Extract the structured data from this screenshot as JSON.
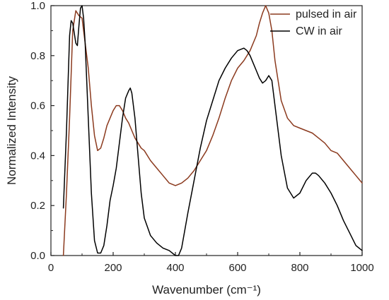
{
  "chart_data": {
    "type": "line",
    "title": "",
    "xlabel": "Wavenumber (cm⁻¹)",
    "ylabel": "Normalized Intensity",
    "xlim": [
      0,
      1000
    ],
    "ylim": [
      0,
      1.0
    ],
    "xticks": [
      0,
      200,
      400,
      600,
      800,
      1000
    ],
    "yticks": [
      0.0,
      0.2,
      0.4,
      0.6,
      0.8,
      1.0
    ],
    "xtick_labels": [
      "0",
      "200",
      "400",
      "600",
      "800",
      "1000"
    ],
    "ytick_labels": [
      "0.0",
      "0.2",
      "0.4",
      "0.6",
      "0.8",
      "1.0"
    ],
    "grid": false,
    "legend_position": "top-right",
    "series": [
      {
        "name": "pulsed in air",
        "color": "#8B3A1E",
        "x": [
          40,
          50,
          60,
          70,
          80,
          90,
          100,
          110,
          120,
          130,
          140,
          150,
          160,
          170,
          180,
          190,
          200,
          210,
          220,
          230,
          240,
          250,
          260,
          270,
          280,
          290,
          300,
          320,
          340,
          360,
          380,
          400,
          420,
          440,
          460,
          480,
          500,
          520,
          540,
          560,
          580,
          600,
          620,
          640,
          660,
          670,
          680,
          690,
          700,
          710,
          720,
          740,
          760,
          780,
          800,
          820,
          840,
          860,
          880,
          900,
          920,
          940,
          960,
          980,
          1000
        ],
        "values": [
          0.0,
          0.25,
          0.55,
          0.9,
          0.98,
          0.96,
          0.95,
          0.85,
          0.75,
          0.6,
          0.48,
          0.42,
          0.43,
          0.47,
          0.52,
          0.55,
          0.58,
          0.6,
          0.6,
          0.58,
          0.55,
          0.53,
          0.5,
          0.47,
          0.45,
          0.43,
          0.42,
          0.38,
          0.35,
          0.32,
          0.29,
          0.28,
          0.29,
          0.31,
          0.34,
          0.38,
          0.42,
          0.48,
          0.55,
          0.63,
          0.7,
          0.75,
          0.78,
          0.82,
          0.88,
          0.93,
          0.97,
          1.0,
          0.97,
          0.9,
          0.78,
          0.62,
          0.55,
          0.52,
          0.51,
          0.5,
          0.49,
          0.47,
          0.45,
          0.42,
          0.41,
          0.38,
          0.35,
          0.32,
          0.29
        ]
      },
      {
        "name": "CW in air",
        "color": "#000000",
        "x": [
          40,
          50,
          60,
          65,
          70,
          80,
          85,
          90,
          95,
          100,
          105,
          110,
          120,
          130,
          140,
          150,
          160,
          170,
          180,
          190,
          200,
          210,
          220,
          230,
          240,
          250,
          255,
          260,
          270,
          280,
          290,
          300,
          320,
          340,
          360,
          380,
          400,
          410,
          420,
          430,
          440,
          460,
          480,
          500,
          520,
          540,
          560,
          580,
          600,
          620,
          630,
          640,
          650,
          660,
          670,
          680,
          690,
          700,
          710,
          720,
          740,
          760,
          780,
          800,
          820,
          840,
          850,
          860,
          880,
          900,
          920,
          940,
          960,
          980,
          1000
        ],
        "values": [
          0.19,
          0.5,
          0.88,
          0.94,
          0.93,
          0.85,
          0.84,
          0.92,
          0.99,
          1.0,
          0.95,
          0.85,
          0.55,
          0.25,
          0.06,
          0.01,
          0.01,
          0.04,
          0.12,
          0.22,
          0.28,
          0.35,
          0.45,
          0.55,
          0.63,
          0.66,
          0.67,
          0.65,
          0.55,
          0.4,
          0.25,
          0.15,
          0.08,
          0.05,
          0.03,
          0.02,
          0.0,
          0.0,
          0.03,
          0.1,
          0.17,
          0.3,
          0.43,
          0.54,
          0.62,
          0.7,
          0.75,
          0.79,
          0.82,
          0.83,
          0.82,
          0.8,
          0.77,
          0.74,
          0.71,
          0.69,
          0.7,
          0.72,
          0.7,
          0.6,
          0.4,
          0.27,
          0.23,
          0.25,
          0.3,
          0.33,
          0.33,
          0.32,
          0.29,
          0.25,
          0.2,
          0.14,
          0.09,
          0.04,
          0.02
        ]
      }
    ]
  }
}
